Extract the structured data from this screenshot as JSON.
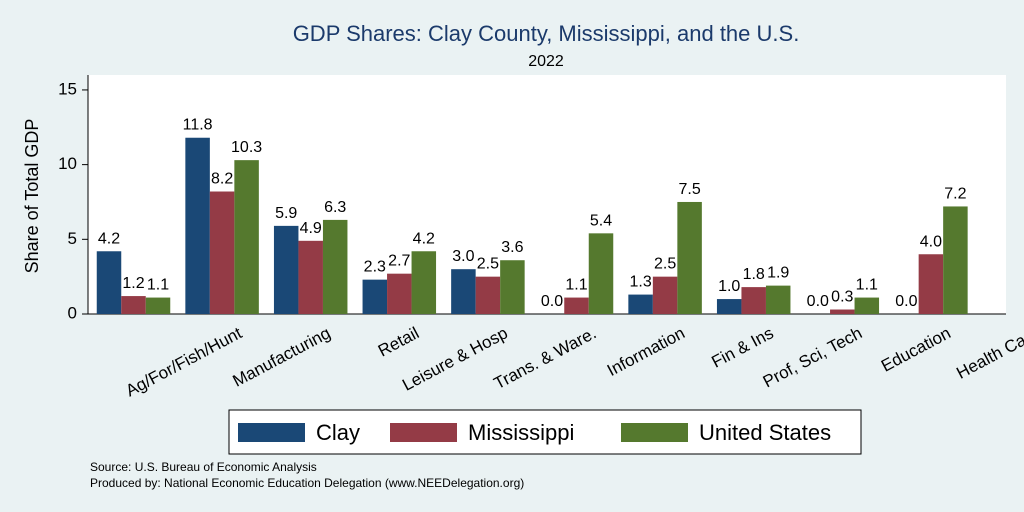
{
  "chart_data": {
    "type": "bar",
    "title": "GDP Shares: Clay County, Mississippi, and the U.S.",
    "subtitle": "2022",
    "ylabel": "Share of Total GDP",
    "xlabel": "",
    "ylim": [
      0,
      16
    ],
    "yticks": [
      0,
      5,
      10,
      15
    ],
    "grid": false,
    "legend_position": "bottom",
    "categories": [
      "Ag/For/Fish/Hunt",
      "Manufacturing",
      "Retail",
      "Leisure & Hosp",
      "Trans. & Ware.",
      "Information",
      "Fin & Ins",
      "Prof, Sci, Tech",
      "Education",
      "Health Care"
    ],
    "series": [
      {
        "name": "Clay",
        "color": "#1a4876",
        "values": [
          4.2,
          11.8,
          5.9,
          2.3,
          3.0,
          0.0,
          1.3,
          1.0,
          0.0,
          0.0
        ],
        "labels": [
          "4.2",
          "11.8",
          "5.9",
          "2.3",
          "3.0",
          "0.0",
          "1.3",
          "1.0",
          "0.0",
          "0.0"
        ]
      },
      {
        "name": "Mississippi",
        "color": "#943b46",
        "values": [
          1.2,
          8.2,
          4.9,
          2.7,
          2.5,
          1.1,
          2.5,
          1.8,
          0.3,
          4.0
        ],
        "labels": [
          "1.2",
          "8.2",
          "4.9",
          "2.7",
          "2.5",
          "1.1",
          "2.5",
          "1.8",
          "0.3",
          "4.0"
        ]
      },
      {
        "name": "United States",
        "color": "#55792e",
        "values": [
          1.1,
          10.3,
          6.3,
          4.2,
          3.6,
          5.4,
          7.5,
          1.9,
          1.1,
          7.2
        ],
        "labels": [
          "1.1",
          "10.3",
          "6.3",
          "4.2",
          "3.6",
          "5.4",
          "7.5",
          "1.9",
          "1.1",
          "7.2"
        ]
      }
    ]
  },
  "notes": {
    "source": "Source: U.S. Bureau of Economic Analysis",
    "produced_by": "Produced by: National Economic Education Delegation (www.NEEDelegation.org)"
  }
}
